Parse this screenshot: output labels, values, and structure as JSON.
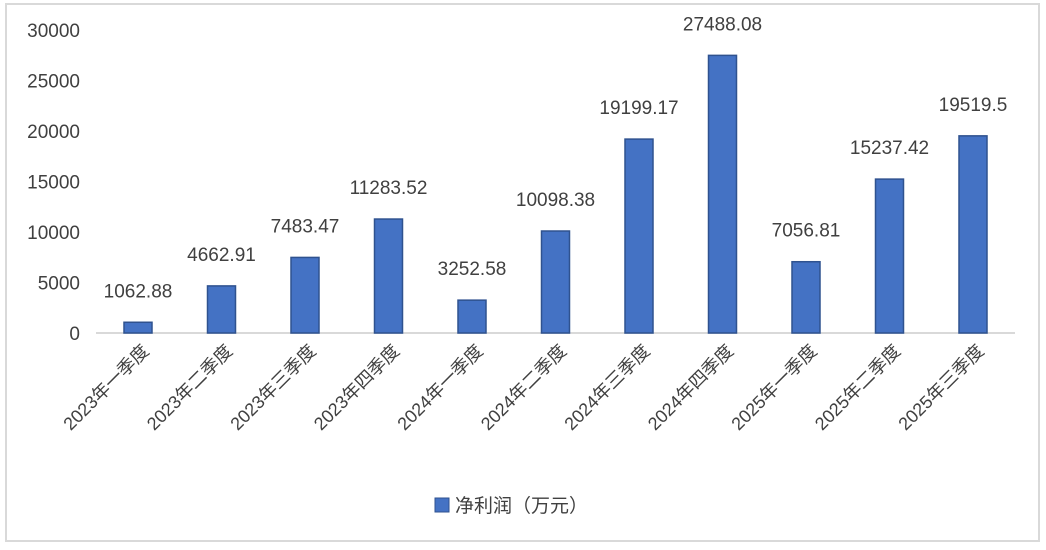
{
  "chart_data": {
    "type": "bar",
    "title": "",
    "xlabel": "",
    "ylabel": "",
    "ylim": [
      0,
      30000
    ],
    "yticks": [
      0,
      5000,
      10000,
      15000,
      20000,
      25000,
      30000
    ],
    "grid": false,
    "legend_position": "bottom",
    "categories": [
      "2023年一季度",
      "2023年二季度",
      "2023年三季度",
      "2023年四季度",
      "2024年一季度",
      "2024年二季度",
      "2024年三季度",
      "2024年四季度",
      "2025年一季度",
      "2025年二季度",
      "2025年三季度"
    ],
    "series": [
      {
        "name": "净利润（万元）",
        "color": "#4472C4",
        "values": [
          1062.88,
          4662.91,
          7483.47,
          11283.52,
          3252.58,
          10098.38,
          19199.17,
          27488.08,
          7056.81,
          15237.42,
          19519.5
        ],
        "labels": [
          "1062.88",
          "4662.91",
          "7483.47",
          "11283.52",
          "3252.58",
          "10098.38",
          "19199.17",
          "27488.08",
          "7056.81",
          "15237.42",
          "19519.5"
        ]
      }
    ]
  },
  "legend": {
    "label": "净利润（万元）"
  },
  "colors": {
    "bar": "#4472C4",
    "bar_border": "#2F528F",
    "axis": "#d9d9d9",
    "text": "#404040"
  }
}
